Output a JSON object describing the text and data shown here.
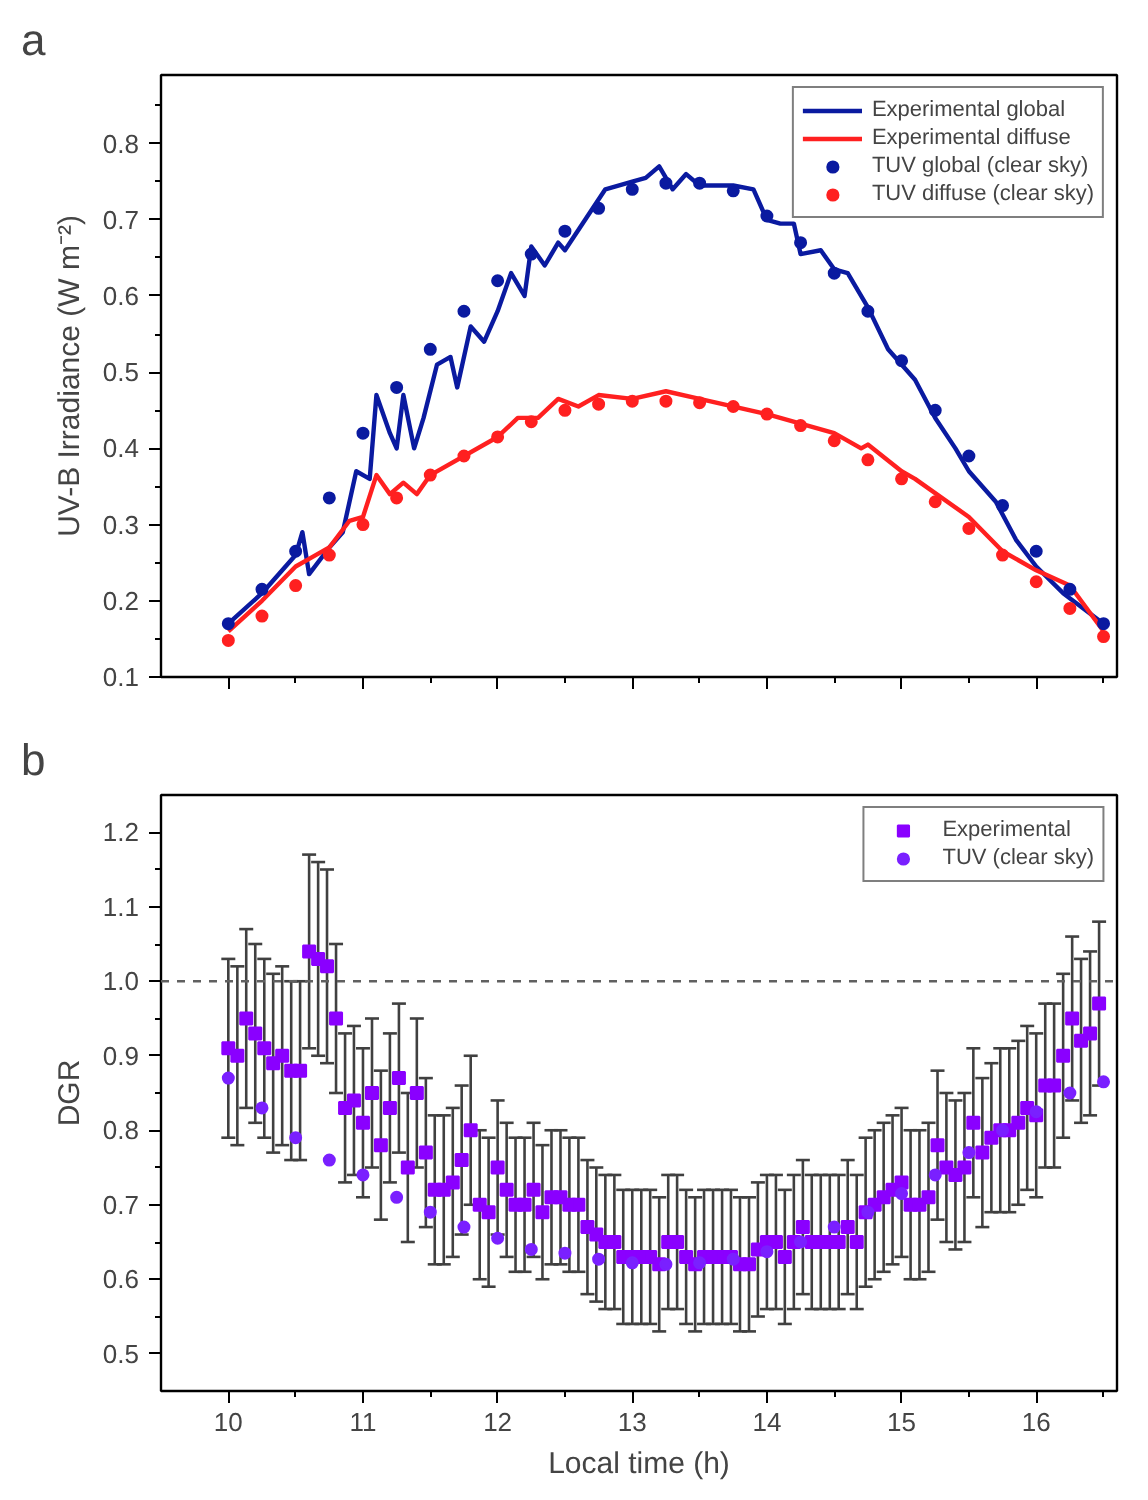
{
  "chart_data": [
    {
      "type": "line",
      "ylabel": "UV-B Irradiance (W m⁻²)",
      "annotations": [
        "a"
      ],
      "legend": "top right",
      "grid": false,
      "tick_labels": "y",
      "xlim": [
        9.5,
        16.6
      ],
      "ylim": [
        0.1,
        0.89
      ],
      "xticks": [
        10,
        {
          "value": 10.5,
          "label": null
        },
        11,
        {
          "value": 11.5,
          "label": null
        },
        12,
        {
          "value": 12.5,
          "label": null
        },
        13,
        {
          "value": 13.5,
          "label": null
        },
        14,
        {
          "value": 14.5,
          "label": null
        },
        15,
        {
          "value": 15.5,
          "label": null
        },
        16,
        {
          "value": 16.5,
          "label": null
        }
      ],
      "yticks": [
        0.1,
        {
          "value": 0.15,
          "label": null
        },
        0.2,
        {
          "value": 0.25,
          "label": null
        },
        0.3,
        {
          "value": 0.35,
          "label": null
        },
        0.4,
        {
          "value": 0.45,
          "label": null
        },
        0.5,
        {
          "value": 0.55,
          "label": null
        },
        0.6,
        {
          "value": 0.65,
          "label": null
        },
        0.7,
        {
          "value": 0.75,
          "label": null
        },
        0.8,
        {
          "value": 0.85,
          "label": null
        }
      ],
      "series": [
        {
          "name": "Experimental global",
          "marker": "none",
          "line_style": "solid",
          "color": "#0a1aa0",
          "x": [
            10.0,
            10.25,
            10.5,
            10.55,
            10.6,
            10.75,
            10.85,
            10.95,
            11.05,
            11.1,
            11.2,
            11.25,
            11.3,
            11.38,
            11.45,
            11.55,
            11.65,
            11.7,
            11.8,
            11.9,
            12.0,
            12.1,
            12.2,
            12.25,
            12.35,
            12.45,
            12.5,
            12.65,
            12.8,
            13.0,
            13.1,
            13.2,
            13.3,
            13.4,
            13.5,
            13.75,
            13.9,
            14.0,
            14.1,
            14.2,
            14.25,
            14.4,
            14.5,
            14.6,
            14.75,
            14.9,
            15.0,
            15.1,
            15.25,
            15.4,
            15.5,
            15.7,
            15.85,
            16.0,
            16.2,
            16.5
          ],
          "values": [
            0.17,
            0.21,
            0.26,
            0.29,
            0.235,
            0.27,
            0.29,
            0.37,
            0.36,
            0.47,
            0.42,
            0.4,
            0.47,
            0.4,
            0.44,
            0.51,
            0.52,
            0.48,
            0.56,
            0.54,
            0.58,
            0.63,
            0.6,
            0.665,
            0.64,
            0.67,
            0.66,
            0.7,
            0.74,
            0.75,
            0.755,
            0.77,
            0.74,
            0.76,
            0.745,
            0.745,
            0.74,
            0.7,
            0.695,
            0.695,
            0.655,
            0.66,
            0.635,
            0.63,
            0.585,
            0.53,
            0.51,
            0.49,
            0.44,
            0.4,
            0.37,
            0.33,
            0.28,
            0.245,
            0.21,
            0.17
          ]
        },
        {
          "name": "Experimental diffuse",
          "marker": "none",
          "line_style": "solid",
          "color": "#ff2020",
          "x": [
            10.0,
            10.25,
            10.5,
            10.6,
            10.75,
            10.9,
            11.0,
            11.1,
            11.2,
            11.3,
            11.4,
            11.5,
            12.0,
            12.15,
            12.3,
            12.45,
            12.6,
            12.75,
            13.0,
            13.25,
            13.5,
            14.0,
            14.5,
            14.7,
            14.75,
            15.0,
            15.1,
            15.5,
            15.75,
            16.0,
            16.25,
            16.5
          ],
          "values": [
            0.16,
            0.2,
            0.245,
            0.255,
            0.27,
            0.305,
            0.31,
            0.365,
            0.34,
            0.355,
            0.34,
            0.365,
            0.415,
            0.44,
            0.44,
            0.465,
            0.455,
            0.47,
            0.465,
            0.475,
            0.465,
            0.445,
            0.42,
            0.4,
            0.405,
            0.37,
            0.36,
            0.31,
            0.265,
            0.24,
            0.22,
            0.16
          ]
        },
        {
          "name": "TUV global (clear sky)",
          "type": "scatter",
          "marker": "circle",
          "color": "#0a1aa0",
          "x": [
            10.0,
            10.25,
            10.5,
            10.75,
            11.0,
            11.25,
            11.5,
            11.75,
            12.0,
            12.25,
            12.5,
            12.75,
            13.0,
            13.25,
            13.5,
            13.75,
            14.0,
            14.25,
            14.5,
            14.75,
            15.0,
            15.25,
            15.5,
            15.75,
            16.0,
            16.25,
            16.5
          ],
          "values": [
            0.17,
            0.215,
            0.265,
            0.335,
            0.42,
            0.48,
            0.53,
            0.58,
            0.62,
            0.655,
            0.685,
            0.715,
            0.74,
            0.748,
            0.748,
            0.738,
            0.705,
            0.67,
            0.63,
            0.58,
            0.515,
            0.45,
            0.39,
            0.325,
            0.265,
            0.215,
            0.17
          ]
        },
        {
          "name": "TUV diffuse (clear sky)",
          "type": "scatter",
          "marker": "circle",
          "color": "#ff2020",
          "x": [
            10.0,
            10.25,
            10.5,
            10.75,
            11.0,
            11.25,
            11.5,
            11.75,
            12.0,
            12.25,
            12.5,
            12.75,
            13.0,
            13.25,
            13.5,
            13.75,
            14.0,
            14.25,
            14.5,
            14.75,
            15.0,
            15.25,
            15.5,
            15.75,
            16.0,
            16.25,
            16.5
          ],
          "values": [
            0.148,
            0.18,
            0.22,
            0.26,
            0.3,
            0.335,
            0.365,
            0.39,
            0.415,
            0.435,
            0.45,
            0.458,
            0.462,
            0.462,
            0.46,
            0.455,
            0.445,
            0.43,
            0.41,
            0.385,
            0.36,
            0.33,
            0.295,
            0.26,
            0.225,
            0.19,
            0.153
          ]
        }
      ]
    },
    {
      "type": "scatter",
      "ylabel": "DGR",
      "xlabel": "Local time (h)",
      "annotations": [
        "b"
      ],
      "legend": "top right",
      "grid": false,
      "xlim": [
        9.5,
        16.6
      ],
      "ylim": [
        0.45,
        1.25
      ],
      "xticks": [
        10,
        {
          "value": 10.5,
          "label": null
        },
        11,
        {
          "value": 11.5,
          "label": null
        },
        12,
        {
          "value": 12.5,
          "label": null
        },
        13,
        {
          "value": 13.5,
          "label": null
        },
        14,
        {
          "value": 14.5,
          "label": null
        },
        15,
        {
          "value": 15.5,
          "label": null
        },
        16,
        {
          "value": 16.5,
          "label": null
        }
      ],
      "yticks": [
        0.5,
        {
          "value": 0.55,
          "label": null
        },
        0.6,
        {
          "value": 0.65,
          "label": null
        },
        0.7,
        {
          "value": 0.75,
          "label": null
        },
        0.8,
        {
          "value": 0.85,
          "label": null
        },
        0.9,
        {
          "value": 0.95,
          "label": null
        },
        {
          "value": 1.0,
          "label": "1.0"
        },
        {
          "value": 1.05,
          "label": null
        },
        1.1,
        {
          "value": 1.15,
          "label": null
        },
        1.2
      ],
      "ref_lines": [
        {
          "axis": "y",
          "value": 1.0,
          "label": null,
          "color": "#606060",
          "line_style": "dashed"
        }
      ],
      "series": [
        {
          "name": "Experimental",
          "marker": "square",
          "color": "#8a00ff",
          "x": [
            10,
            10.067,
            10.133,
            10.2,
            10.267,
            10.333,
            10.4,
            10.467,
            10.533,
            10.6,
            10.667,
            10.733,
            10.8,
            10.867,
            10.933,
            11,
            11.067,
            11.133,
            11.2,
            11.267,
            11.333,
            11.4,
            11.467,
            11.533,
            11.6,
            11.667,
            11.733,
            11.8,
            11.867,
            11.933,
            12,
            12.067,
            12.133,
            12.2,
            12.267,
            12.333,
            12.4,
            12.467,
            12.533,
            12.6,
            12.667,
            12.733,
            12.8,
            12.867,
            12.933,
            13,
            13.067,
            13.133,
            13.2,
            13.267,
            13.333,
            13.4,
            13.467,
            13.533,
            13.6,
            13.667,
            13.733,
            13.8,
            13.867,
            13.933,
            14,
            14.067,
            14.133,
            14.2,
            14.267,
            14.333,
            14.4,
            14.467,
            14.533,
            14.6,
            14.667,
            14.733,
            14.8,
            14.867,
            14.933,
            15,
            15.067,
            15.133,
            15.2,
            15.267,
            15.333,
            15.4,
            15.467,
            15.533,
            15.6,
            15.667,
            15.733,
            15.8,
            15.867,
            15.933,
            16,
            16.067,
            16.133,
            16.2,
            16.267,
            16.333,
            16.4,
            16.467
          ],
          "values": [
            0.91,
            0.9,
            0.95,
            0.93,
            0.91,
            0.89,
            0.9,
            0.88,
            0.88,
            1.04,
            1.03,
            1.02,
            0.95,
            0.83,
            0.84,
            0.81,
            0.85,
            0.78,
            0.83,
            0.87,
            0.75,
            0.85,
            0.77,
            0.72,
            0.72,
            0.73,
            0.76,
            0.8,
            0.7,
            0.69,
            0.75,
            0.72,
            0.7,
            0.7,
            0.72,
            0.69,
            0.71,
            0.71,
            0.7,
            0.7,
            0.67,
            0.66,
            0.65,
            0.65,
            0.63,
            0.63,
            0.63,
            0.63,
            0.62,
            0.65,
            0.65,
            0.63,
            0.62,
            0.63,
            0.63,
            0.63,
            0.63,
            0.62,
            0.62,
            0.64,
            0.65,
            0.65,
            0.63,
            0.65,
            0.67,
            0.65,
            0.65,
            0.65,
            0.65,
            0.67,
            0.65,
            0.69,
            0.7,
            0.71,
            0.72,
            0.73,
            0.7,
            0.7,
            0.71,
            0.78,
            0.75,
            0.74,
            0.75,
            0.81,
            0.77,
            0.79,
            0.8,
            0.8,
            0.81,
            0.83,
            0.82,
            0.86,
            0.86,
            0.9,
            0.95,
            0.92,
            0.93,
            0.97
          ],
          "errors": [
            0.12,
            0.12,
            0.12,
            0.12,
            0.12,
            0.12,
            0.12,
            0.12,
            0.12,
            0.13,
            0.13,
            0.13,
            0.1,
            0.1,
            0.1,
            0.1,
            0.1,
            0.1,
            0.1,
            0.1,
            0.1,
            0.1,
            0.1,
            0.1,
            0.1,
            0.1,
            0.1,
            0.1,
            0.1,
            0.1,
            0.09,
            0.09,
            0.09,
            0.09,
            0.09,
            0.09,
            0.09,
            0.09,
            0.09,
            0.09,
            0.09,
            0.09,
            0.09,
            0.09,
            0.09,
            0.09,
            0.09,
            0.09,
            0.09,
            0.09,
            0.09,
            0.09,
            0.09,
            0.09,
            0.09,
            0.09,
            0.09,
            0.09,
            0.09,
            0.09,
            0.09,
            0.09,
            0.09,
            0.09,
            0.09,
            0.09,
            0.09,
            0.09,
            0.09,
            0.09,
            0.09,
            0.1,
            0.1,
            0.1,
            0.1,
            0.1,
            0.1,
            0.1,
            0.1,
            0.1,
            0.1,
            0.1,
            0.1,
            0.1,
            0.1,
            0.1,
            0.11,
            0.11,
            0.11,
            0.11,
            0.11,
            0.11,
            0.11,
            0.11,
            0.11,
            0.11,
            0.11,
            0.11
          ]
        },
        {
          "name": "TUV (clear sky)",
          "marker": "circle",
          "color": "#7a20ff",
          "x": [
            10.0,
            10.25,
            10.5,
            10.75,
            11.0,
            11.25,
            11.5,
            11.75,
            12.0,
            12.25,
            12.5,
            12.75,
            13.0,
            13.25,
            13.5,
            13.75,
            14.0,
            14.25,
            14.5,
            14.75,
            15.0,
            15.25,
            15.5,
            15.75,
            16.0,
            16.25,
            16.5
          ],
          "values": [
            0.87,
            0.83,
            0.79,
            0.76,
            0.74,
            0.71,
            0.69,
            0.67,
            0.655,
            0.64,
            0.635,
            0.627,
            0.622,
            0.62,
            0.622,
            0.627,
            0.637,
            0.65,
            0.67,
            0.69,
            0.715,
            0.74,
            0.77,
            0.8,
            0.825,
            0.85,
            0.865
          ]
        }
      ]
    }
  ]
}
